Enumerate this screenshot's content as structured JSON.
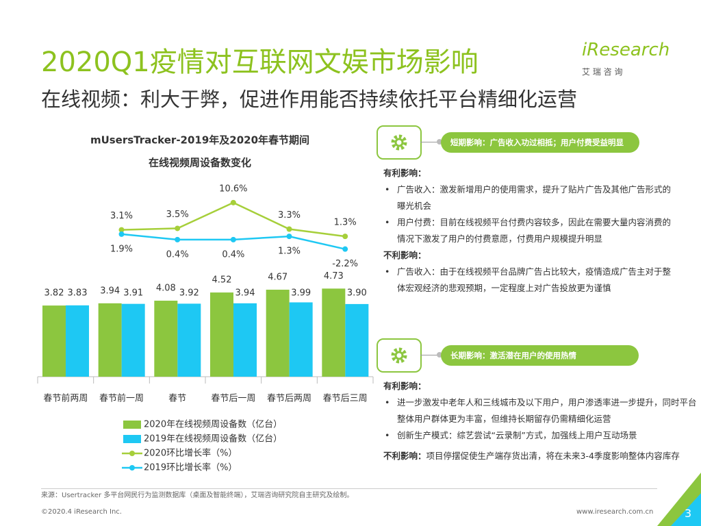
{
  "header": {
    "title": "2020Q1疫情对互联网文娱市场影响",
    "subtitle": "在线视频：利大于弊，促进作用能否持续依托平台精细化运营",
    "logo": "iResearch",
    "logo_cn": "艾 瑞 咨 询"
  },
  "chart_data": {
    "type": "bar",
    "title": [
      "mUsersTracker-2019年及2020年春节期间",
      "在线视频周设备数变化"
    ],
    "categories": [
      "春节前两周",
      "春节前一周",
      "春节",
      "春节后一周",
      "春节后两周",
      "春节后三周"
    ],
    "series": [
      {
        "name": "2020年在线视频周设备数（亿台）",
        "color": "#8cc63f",
        "type": "bar",
        "values": [
          3.82,
          3.94,
          4.08,
          4.52,
          4.67,
          4.73
        ],
        "value_labels": [
          "3.82",
          "3.94",
          "4.08",
          "4.52",
          "4.67",
          "4.73"
        ]
      },
      {
        "name": "2019年在线视频周设备数（亿台）",
        "color": "#1ec8f3",
        "type": "bar",
        "values": [
          3.83,
          3.91,
          3.92,
          3.94,
          3.99,
          3.9
        ],
        "value_labels": [
          "3.83",
          "3.91",
          "3.92",
          "3.94",
          "3.99",
          "3.90"
        ]
      },
      {
        "name": "2020环比增长率（%）",
        "color": "#a6cf3a",
        "type": "line",
        "axis": "y2",
        "values": [
          null,
          3.1,
          3.5,
          10.6,
          3.3,
          1.3
        ],
        "value_labels": [
          null,
          "3.1%",
          "3.5%",
          "10.6%",
          "3.3%",
          "1.3%"
        ]
      },
      {
        "name": "2019环比增长率（%）",
        "color": "#1ec8f3",
        "type": "line",
        "axis": "y2",
        "values": [
          null,
          1.9,
          0.4,
          0.4,
          1.3,
          -2.2
        ],
        "value_labels": [
          null,
          "1.9%",
          "0.4%",
          "0.4%",
          "1.3%",
          "-2.2%"
        ]
      }
    ]
  },
  "panels": [
    {
      "tag": "短期影响：广告收入功过相抵；用户付费受益明显",
      "sections": [
        {
          "heading": "有利影响：",
          "items": [
            "广告收入：激发新增用户的使用需求，提升了贴片广告及其他广告形式的曝光机会",
            "用户付费：目前在线视频平台付费内容较多，因此在需要大量内容消费的情况下激发了用户的付费意愿，付费用户规模提升明显"
          ]
        },
        {
          "heading": "不利影响：",
          "items": [
            "广告收入：由于在线视频平台品牌广告占比较大，疫情造成广告主对于整体宏观经济的悲观预期，一定程度上对广告投放更为谨慎"
          ]
        }
      ]
    },
    {
      "tag": "长期影响：激活潜在用户的使用热情",
      "sections": [
        {
          "heading": "有利影响：",
          "items": [
            "进一步激发中老年人和三线城市及以下用户，用户渗透率进一步提升，同时平台整体用户群体更为丰富，但维持长期留存仍需精细化运营",
            "创新生产模式：综艺尝试“云录制”方式，加强线上用户互动场景"
          ]
        },
        {
          "heading": "不利影响：",
          "text": "项目停摆促使生产端存货出清，将在未来3-4季度影响整体内容库存"
        }
      ]
    }
  ],
  "footer": {
    "source": "来源：Usertracker 多平台网民行为监测数据库（桌面及智能终端），艾瑞咨询研究院自主研究及绘制。",
    "copyright": "©2020.4 iResearch Inc.",
    "url": "www.iresearch.com.cn",
    "page": "3"
  }
}
